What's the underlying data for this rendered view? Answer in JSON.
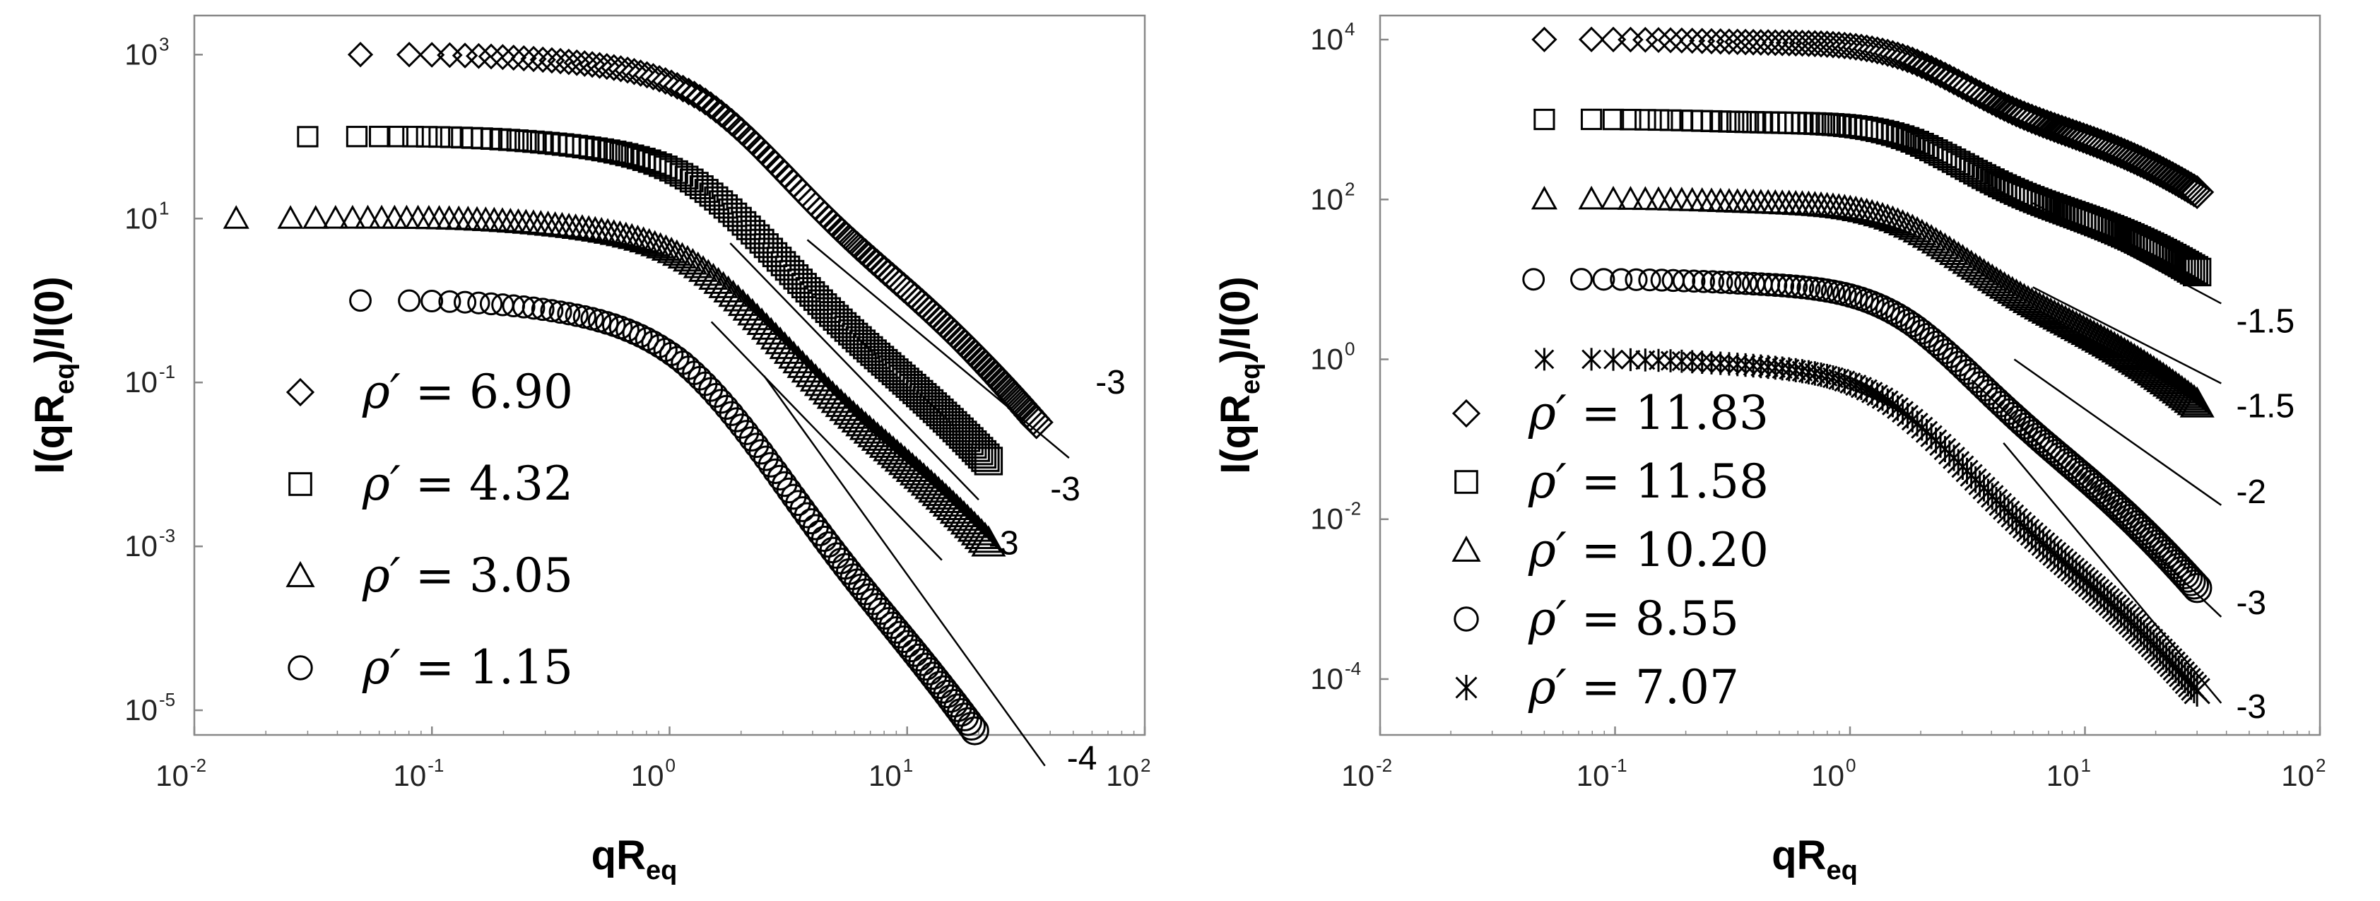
{
  "chart_data": [
    {
      "type": "scatter",
      "xlabel": "qR",
      "xlabel_sub": "eq",
      "ylabel": "I(qR",
      "ylabel_sub": "eq",
      "ylabel_tail": ")/I(0)",
      "x_scale": "log",
      "y_scale": "log",
      "xlim": [
        0.01,
        100
      ],
      "ylim": [
        5e-06,
        3000
      ],
      "x_ticks": [
        {
          "value": 0.01,
          "base": "10",
          "exp": "-2"
        },
        {
          "value": 0.1,
          "base": "10",
          "exp": "-1"
        },
        {
          "value": 1,
          "base": "10",
          "exp": "0"
        },
        {
          "value": 10,
          "base": "10",
          "exp": "1"
        },
        {
          "value": 100,
          "base": "10",
          "exp": "2"
        }
      ],
      "y_ticks": [
        {
          "value": 1e-05,
          "base": "10",
          "exp": "-5"
        },
        {
          "value": 0.001,
          "base": "10",
          "exp": "-3"
        },
        {
          "value": 0.1,
          "base": "10",
          "exp": "-1"
        },
        {
          "value": 10,
          "base": "10",
          "exp": "1"
        },
        {
          "value": 1000,
          "base": "10",
          "exp": "3"
        }
      ],
      "grid": false,
      "legend_position": "bottom-left",
      "series": [
        {
          "name": "6.90",
          "marker": "diamond",
          "plateau": 1000,
          "qc": 1.1,
          "decay_slope": -3,
          "xmin": 0.05,
          "xmax": 35
        },
        {
          "name": "4.32",
          "marker": "square",
          "plateau": 100,
          "qc": 1.0,
          "decay_slope": -3,
          "xmin": 0.03,
          "xmax": 22
        },
        {
          "name": "3.05",
          "marker": "triangle",
          "plateau": 10,
          "qc": 1.0,
          "decay_slope": -3,
          "xmin": 0.015,
          "xmax": 22
        },
        {
          "name": "1.15",
          "marker": "circle",
          "plateau": 1,
          "qc": 0.9,
          "decay_slope": -4,
          "xmin": 0.05,
          "xmax": 35
        }
      ],
      "slope_annotations": [
        {
          "text": "-3",
          "x1": 3.8,
          "y1": 5.5,
          "x2": 48,
          "y2": 0.012,
          "label_x": 62,
          "label_y": 0.1
        },
        {
          "text": "-3",
          "x1": 1.8,
          "y1": 5.0,
          "x2": 20,
          "y2": 0.0037,
          "label_x": 40,
          "label_y": 0.005
        },
        {
          "text": "-3",
          "x1": 1.5,
          "y1": 0.55,
          "x2": 14,
          "y2": 0.00068,
          "label_x": 22,
          "label_y": 0.0011
        },
        {
          "text": "-4",
          "x1": 2.5,
          "y1": 0.12,
          "x2": 38,
          "y2": 2.1e-06,
          "label_x": 47,
          "label_y": 2.6e-06
        }
      ],
      "legend": {
        "symbol": "ρ′",
        "equals": " = "
      }
    },
    {
      "type": "scatter",
      "xlabel": "qR",
      "xlabel_sub": "eq",
      "ylabel": "I(qR",
      "ylabel_sub": "eq",
      "ylabel_tail": ")/I(0)",
      "x_scale": "log",
      "y_scale": "log",
      "xlim": [
        0.01,
        100
      ],
      "ylim": [
        2e-05,
        20000
      ],
      "x_ticks": [
        {
          "value": 0.01,
          "base": "10",
          "exp": "-2"
        },
        {
          "value": 0.1,
          "base": "10",
          "exp": "-1"
        },
        {
          "value": 1,
          "base": "10",
          "exp": "0"
        },
        {
          "value": 10,
          "base": "10",
          "exp": "1"
        },
        {
          "value": 100,
          "base": "10",
          "exp": "2"
        }
      ],
      "y_ticks": [
        {
          "value": 0.0001,
          "base": "10",
          "exp": "-4"
        },
        {
          "value": 0.01,
          "base": "10",
          "exp": "-2"
        },
        {
          "value": 1,
          "base": "10",
          "exp": "0"
        },
        {
          "value": 100,
          "base": "10",
          "exp": "2"
        },
        {
          "value": 10000,
          "base": "10",
          "exp": "4"
        }
      ],
      "grid": false,
      "legend_position": "bottom-left",
      "series": [
        {
          "name": "11.83",
          "marker": "diamond",
          "plateau": 10000,
          "qc": 1.5,
          "decay_slope": -1.5,
          "xmin": 0.05,
          "xmax": 30
        },
        {
          "name": "11.58",
          "marker": "square",
          "plateau": 1000,
          "qc": 1.5,
          "decay_slope": -1.5,
          "xmin": 0.05,
          "xmax": 30
        },
        {
          "name": "10.20",
          "marker": "triangle",
          "plateau": 100,
          "qc": 1.5,
          "decay_slope": -2,
          "xmin": 0.05,
          "xmax": 30
        },
        {
          "name": "8.55",
          "marker": "circle",
          "plateau": 10,
          "qc": 1.5,
          "decay_slope": -3,
          "xmin": 0.045,
          "xmax": 30
        },
        {
          "name": "7.07",
          "marker": "asterisk",
          "plateau": 1,
          "qc": 1.2,
          "decay_slope": -3,
          "xmin": 0.05,
          "xmax": 30
        }
      ],
      "slope_annotations": [
        {
          "text": "-1.5",
          "x1": 6,
          "y1": 90,
          "x2": 38,
          "y2": 5,
          "label_x": 44,
          "label_y": 3.0
        },
        {
          "text": "-1.5",
          "x1": 6,
          "y1": 8,
          "x2": 38,
          "y2": 0.5,
          "label_x": 44,
          "label_y": 0.26
        },
        {
          "text": "-2",
          "x1": 5,
          "y1": 1.0,
          "x2": 38,
          "y2": 0.015,
          "label_x": 44,
          "label_y": 0.022
        },
        {
          "text": "-3",
          "x1": 3.3,
          "y1": 0.55,
          "x2": 38,
          "y2": 0.0006,
          "label_x": 44,
          "label_y": 0.0009
        },
        {
          "text": "-3",
          "x1": 4.5,
          "y1": 0.09,
          "x2": 38,
          "y2": 5e-05,
          "label_x": 44,
          "label_y": 4.5e-05
        }
      ],
      "legend": {
        "symbol": "ρ′",
        "equals": " = "
      }
    }
  ]
}
